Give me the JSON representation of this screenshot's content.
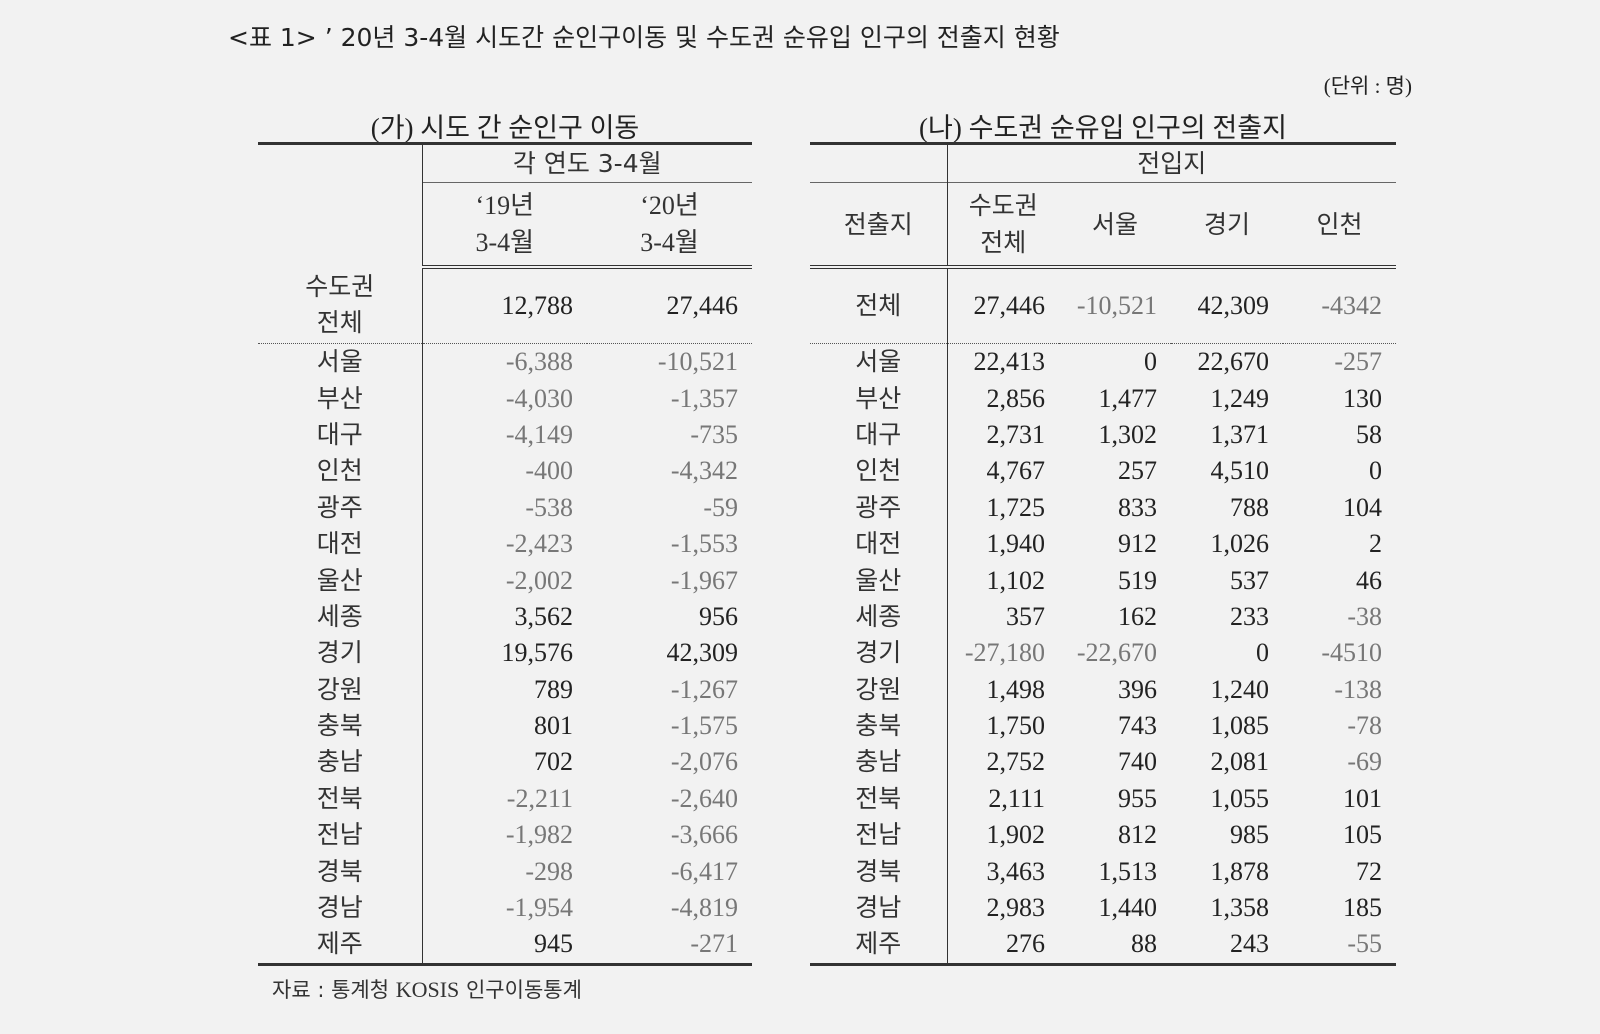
{
  "caption": "<표 1> ’ 20년 3-4월 시도간 순인구이동 및 수도권 순유입 인구의 전출지 현황",
  "unit": "(단위 : 명)",
  "table_a": {
    "title": "(가) 시도 간 순인구 이동",
    "group_header": "각 연도 3-4월",
    "col1_line1": "‘19년",
    "col1_line2": "3-4월",
    "col2_line1": "‘20년",
    "col2_line2": "3-4월",
    "total": {
      "label_line1": "수도권",
      "label_line2": "전체",
      "v19": "12,788",
      "v20": "27,446"
    },
    "rows": [
      {
        "region": "서울",
        "v19": "-6,388",
        "v20": "-10,521"
      },
      {
        "region": "부산",
        "v19": "-4,030",
        "v20": "-1,357"
      },
      {
        "region": "대구",
        "v19": "-4,149",
        "v20": "-735"
      },
      {
        "region": "인천",
        "v19": "-400",
        "v20": "-4,342"
      },
      {
        "region": "광주",
        "v19": "-538",
        "v20": "-59"
      },
      {
        "region": "대전",
        "v19": "-2,423",
        "v20": "-1,553"
      },
      {
        "region": "울산",
        "v19": "-2,002",
        "v20": "-1,967"
      },
      {
        "region": "세종",
        "v19": "3,562",
        "v20": "956"
      },
      {
        "region": "경기",
        "v19": "19,576",
        "v20": "42,309"
      },
      {
        "region": "강원",
        "v19": "789",
        "v20": "-1,267"
      },
      {
        "region": "충북",
        "v19": "801",
        "v20": "-1,575"
      },
      {
        "region": "충남",
        "v19": "702",
        "v20": "-2,076"
      },
      {
        "region": "전북",
        "v19": "-2,211",
        "v20": "-2,640"
      },
      {
        "region": "전남",
        "v19": "-1,982",
        "v20": "-3,666"
      },
      {
        "region": "경북",
        "v19": "-298",
        "v20": "-6,417"
      },
      {
        "region": "경남",
        "v19": "-1,954",
        "v20": "-4,819"
      },
      {
        "region": "제주",
        "v19": "945",
        "v20": "-271"
      }
    ]
  },
  "table_b": {
    "title": "(나) 수도권 순유입 인구의 전출지",
    "group_header": "전입지",
    "origin_header": "전출지",
    "col_capital_line1": "수도권",
    "col_capital_line2": "전체",
    "col_seoul": "서울",
    "col_gyeonggi": "경기",
    "col_incheon": "인천",
    "total": {
      "label": "전체",
      "capital": "27,446",
      "seoul": "-10,521",
      "gyeonggi": "42,309",
      "incheon": "-4342"
    },
    "rows": [
      {
        "origin": "서울",
        "capital": "22,413",
        "seoul": "0",
        "gyeonggi": "22,670",
        "incheon": "-257"
      },
      {
        "origin": "부산",
        "capital": "2,856",
        "seoul": "1,477",
        "gyeonggi": "1,249",
        "incheon": "130"
      },
      {
        "origin": "대구",
        "capital": "2,731",
        "seoul": "1,302",
        "gyeonggi": "1,371",
        "incheon": "58"
      },
      {
        "origin": "인천",
        "capital": "4,767",
        "seoul": "257",
        "gyeonggi": "4,510",
        "incheon": "0"
      },
      {
        "origin": "광주",
        "capital": "1,725",
        "seoul": "833",
        "gyeonggi": "788",
        "incheon": "104"
      },
      {
        "origin": "대전",
        "capital": "1,940",
        "seoul": "912",
        "gyeonggi": "1,026",
        "incheon": "2"
      },
      {
        "origin": "울산",
        "capital": "1,102",
        "seoul": "519",
        "gyeonggi": "537",
        "incheon": "46"
      },
      {
        "origin": "세종",
        "capital": "357",
        "seoul": "162",
        "gyeonggi": "233",
        "incheon": "-38"
      },
      {
        "origin": "경기",
        "capital": "-27,180",
        "seoul": "-22,670",
        "gyeonggi": "0",
        "incheon": "-4510"
      },
      {
        "origin": "강원",
        "capital": "1,498",
        "seoul": "396",
        "gyeonggi": "1,240",
        "incheon": "-138"
      },
      {
        "origin": "충북",
        "capital": "1,750",
        "seoul": "743",
        "gyeonggi": "1,085",
        "incheon": "-78"
      },
      {
        "origin": "충남",
        "capital": "2,752",
        "seoul": "740",
        "gyeonggi": "2,081",
        "incheon": "-69"
      },
      {
        "origin": "전북",
        "capital": "2,111",
        "seoul": "955",
        "gyeonggi": "1,055",
        "incheon": "101"
      },
      {
        "origin": "전남",
        "capital": "1,902",
        "seoul": "812",
        "gyeonggi": "985",
        "incheon": "105"
      },
      {
        "origin": "경북",
        "capital": "3,463",
        "seoul": "1,513",
        "gyeonggi": "1,878",
        "incheon": "72"
      },
      {
        "origin": "경남",
        "capital": "2,983",
        "seoul": "1,440",
        "gyeonggi": "1,358",
        "incheon": "185"
      },
      {
        "origin": "제주",
        "capital": "276",
        "seoul": "88",
        "gyeonggi": "243",
        "incheon": "-55"
      }
    ]
  },
  "source": {
    "prefix": "자료 : 통계청",
    "latin": "KOSIS",
    "suffix": "인구이동통계"
  },
  "colors": {
    "negative": "#777777",
    "text": "#222222",
    "background": "#f2f2f2"
  }
}
